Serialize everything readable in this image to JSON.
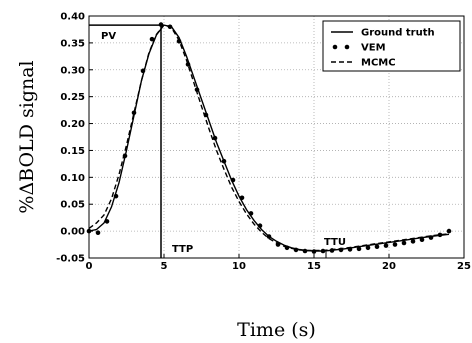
{
  "chart_data": {
    "type": "line",
    "xlabel": "Time (s)",
    "ylabel": "%ΔBOLD signal",
    "xlim": [
      0,
      25
    ],
    "ylim": [
      -0.05,
      0.4
    ],
    "xticks": [
      0,
      5,
      10,
      15,
      20,
      25
    ],
    "yticks": [
      -0.05,
      0.0,
      0.05,
      0.1,
      0.15,
      0.2,
      0.25,
      0.3,
      0.35,
      0.4
    ],
    "grid": true,
    "legend_position": "top-right",
    "series": [
      {
        "name": "Ground truth",
        "style": "solid",
        "x": [
          0,
          0.5,
          1,
          1.5,
          2,
          2.5,
          3,
          3.5,
          4,
          4.5,
          5,
          5.5,
          6,
          6.5,
          7,
          7.5,
          8,
          8.5,
          9,
          9.5,
          10,
          10.5,
          11,
          11.5,
          12,
          12.5,
          13,
          13.5,
          14,
          14.5,
          15,
          15.5,
          16,
          17,
          18,
          19,
          20,
          21,
          22,
          23,
          24
        ],
        "y": [
          0.0,
          0.003,
          0.015,
          0.045,
          0.09,
          0.15,
          0.215,
          0.28,
          0.33,
          0.365,
          0.383,
          0.38,
          0.36,
          0.325,
          0.285,
          0.245,
          0.205,
          0.165,
          0.13,
          0.095,
          0.065,
          0.04,
          0.02,
          0.003,
          -0.01,
          -0.019,
          -0.026,
          -0.031,
          -0.034,
          -0.036,
          -0.037,
          -0.037,
          -0.036,
          -0.033,
          -0.029,
          -0.025,
          -0.021,
          -0.017,
          -0.013,
          -0.009,
          -0.006
        ]
      },
      {
        "name": "VEM",
        "style": "dots",
        "x": [
          0,
          0.6,
          1.2,
          1.8,
          2.4,
          3.0,
          3.6,
          4.2,
          4.8,
          5.4,
          6.0,
          6.6,
          7.2,
          7.8,
          8.4,
          9.0,
          9.6,
          10.2,
          10.8,
          11.4,
          12.0,
          12.6,
          13.2,
          13.8,
          14.4,
          15.0,
          15.6,
          16.2,
          16.8,
          17.4,
          18.0,
          18.6,
          19.2,
          19.8,
          20.4,
          21.0,
          21.6,
          22.2,
          22.8,
          23.4,
          24.0
        ],
        "y": [
          0.0,
          -0.003,
          0.018,
          0.065,
          0.14,
          0.22,
          0.298,
          0.357,
          0.384,
          0.38,
          0.353,
          0.31,
          0.263,
          0.216,
          0.173,
          0.13,
          0.095,
          0.062,
          0.033,
          0.01,
          -0.01,
          -0.025,
          -0.031,
          -0.035,
          -0.037,
          -0.038,
          -0.037,
          -0.036,
          -0.035,
          -0.034,
          -0.033,
          -0.031,
          -0.029,
          -0.027,
          -0.025,
          -0.022,
          -0.019,
          -0.016,
          -0.012,
          -0.007,
          0.0
        ]
      },
      {
        "name": "MCMC",
        "style": "dashed",
        "x": [
          0,
          0.5,
          1,
          1.5,
          2,
          2.5,
          3,
          3.5,
          4,
          4.5,
          5,
          5.5,
          6,
          6.5,
          7,
          7.5,
          8,
          8.5,
          9,
          9.5,
          10,
          10.5,
          11,
          11.5,
          12,
          12.5,
          13,
          13.5,
          14,
          14.5,
          15,
          15.5,
          16,
          17,
          18,
          19,
          20,
          21,
          22,
          23,
          24
        ],
        "y": [
          0.005,
          0.015,
          0.03,
          0.06,
          0.105,
          0.16,
          0.22,
          0.28,
          0.332,
          0.366,
          0.384,
          0.378,
          0.355,
          0.318,
          0.275,
          0.232,
          0.19,
          0.15,
          0.115,
          0.082,
          0.055,
          0.032,
          0.013,
          -0.002,
          -0.014,
          -0.022,
          -0.028,
          -0.032,
          -0.035,
          -0.036,
          -0.036,
          -0.036,
          -0.035,
          -0.032,
          -0.028,
          -0.024,
          -0.02,
          -0.016,
          -0.012,
          -0.008,
          -0.005
        ]
      }
    ],
    "annotations": {
      "pv": {
        "label": "PV",
        "value": 0.383
      },
      "ttp": {
        "label": "TTP",
        "value": 4.8
      },
      "ttu": {
        "label": "TTU",
        "value": 15.8
      }
    }
  }
}
